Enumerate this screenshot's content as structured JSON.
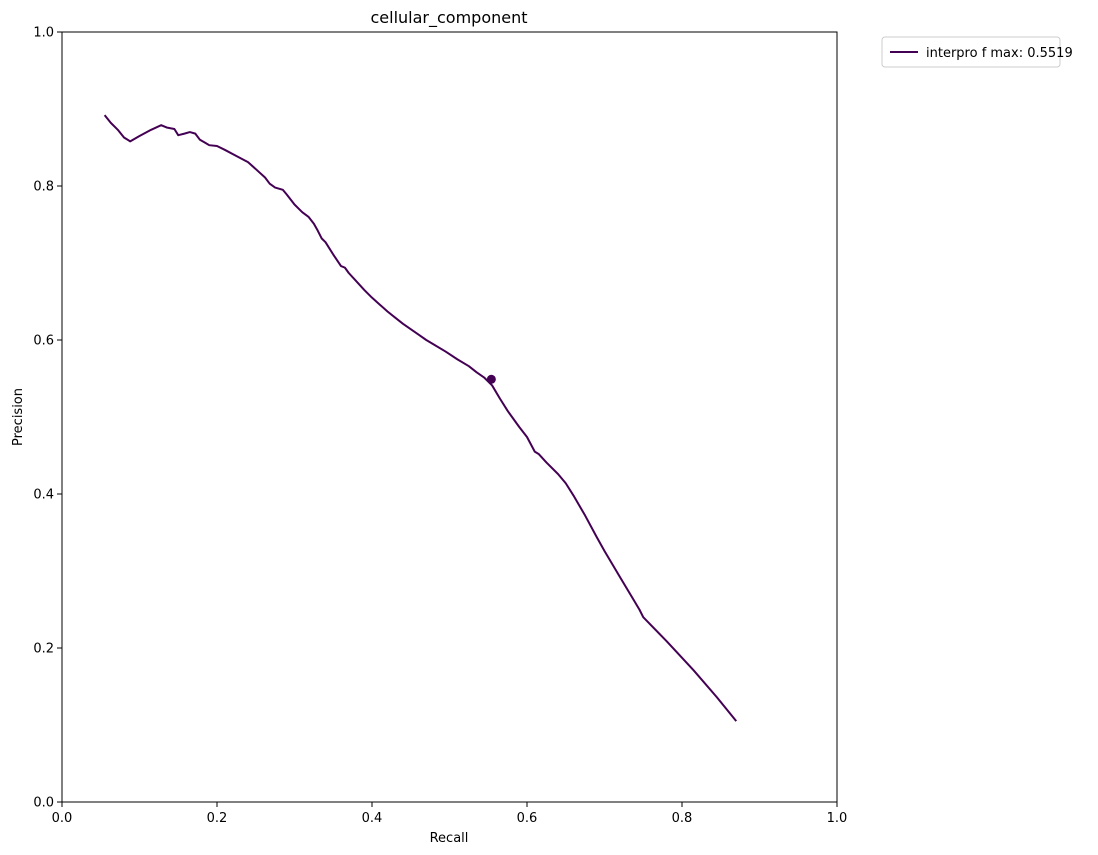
{
  "chart_data": {
    "type": "line",
    "title": "cellular_component",
    "xlabel": "Recall",
    "ylabel": "Precision",
    "xlim": [
      0.0,
      1.0
    ],
    "ylim": [
      0.0,
      1.0
    ],
    "xticks": [
      "0.0",
      "0.2",
      "0.4",
      "0.6",
      "0.8",
      "1.0"
    ],
    "yticks": [
      "0.0",
      "0.2",
      "0.4",
      "0.6",
      "0.8",
      "1.0"
    ],
    "grid": false,
    "legend_position": "outside-top-right",
    "series": [
      {
        "name": "interpro f max: 0.5519",
        "color": "#440154",
        "x": [
          0.055,
          0.063,
          0.072,
          0.08,
          0.088,
          0.1,
          0.115,
          0.128,
          0.135,
          0.145,
          0.15,
          0.158,
          0.165,
          0.172,
          0.178,
          0.185,
          0.19,
          0.2,
          0.21,
          0.225,
          0.24,
          0.25,
          0.262,
          0.268,
          0.275,
          0.285,
          0.29,
          0.3,
          0.31,
          0.318,
          0.325,
          0.33,
          0.335,
          0.34,
          0.35,
          0.36,
          0.365,
          0.37,
          0.38,
          0.39,
          0.4,
          0.41,
          0.42,
          0.43,
          0.44,
          0.45,
          0.46,
          0.47,
          0.48,
          0.495,
          0.51,
          0.525,
          0.535,
          0.545,
          0.555,
          0.565,
          0.575,
          0.59,
          0.6,
          0.61,
          0.615,
          0.625,
          0.64,
          0.65,
          0.66,
          0.675,
          0.69,
          0.7,
          0.72,
          0.745,
          0.75,
          0.78,
          0.815,
          0.845,
          0.87
        ],
        "y": [
          0.892,
          0.882,
          0.873,
          0.863,
          0.858,
          0.865,
          0.873,
          0.879,
          0.876,
          0.874,
          0.866,
          0.868,
          0.87,
          0.868,
          0.86,
          0.856,
          0.853,
          0.852,
          0.847,
          0.839,
          0.831,
          0.822,
          0.811,
          0.803,
          0.798,
          0.795,
          0.789,
          0.776,
          0.766,
          0.76,
          0.751,
          0.742,
          0.732,
          0.727,
          0.711,
          0.696,
          0.694,
          0.687,
          0.676,
          0.665,
          0.655,
          0.646,
          0.637,
          0.629,
          0.621,
          0.614,
          0.607,
          0.6,
          0.594,
          0.585,
          0.575,
          0.566,
          0.558,
          0.551,
          0.541,
          0.524,
          0.508,
          0.487,
          0.474,
          0.455,
          0.452,
          0.441,
          0.426,
          0.414,
          0.398,
          0.372,
          0.344,
          0.326,
          0.292,
          0.25,
          0.24,
          0.209,
          0.171,
          0.136,
          0.105
        ]
      }
    ],
    "marker": {
      "x": 0.554,
      "y": 0.549,
      "color": "#440154"
    }
  }
}
